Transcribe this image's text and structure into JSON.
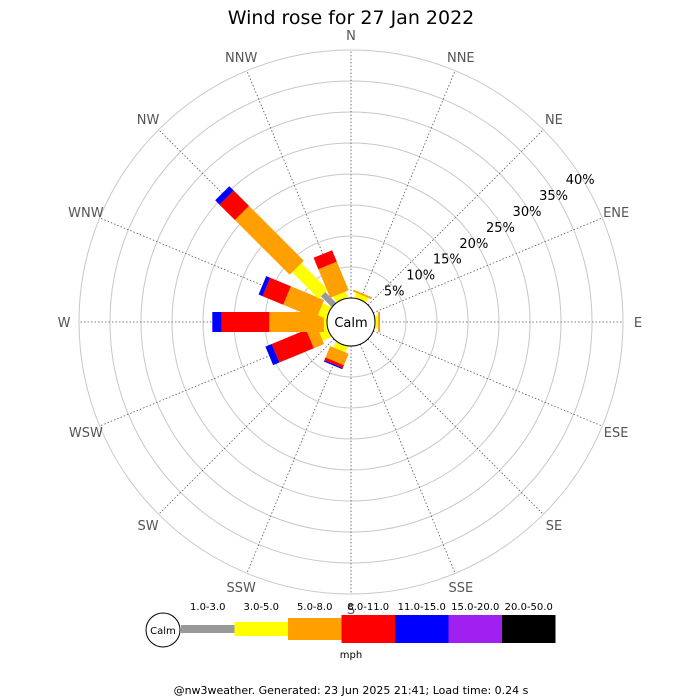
{
  "chart_data": {
    "type": "wind-rose",
    "title": "Wind rose for 27 Jan 2022",
    "directions": [
      "N",
      "NNE",
      "NE",
      "ENE",
      "E",
      "ESE",
      "SE",
      "SSE",
      "S",
      "SSW",
      "SW",
      "WSW",
      "W",
      "WNW",
      "NW",
      "NNW"
    ],
    "radial_ticks": [
      "5%",
      "10%",
      "15%",
      "20%",
      "25%",
      "30%",
      "35%",
      "40%"
    ],
    "radial_max_pct": 40,
    "calm_label": "Calm",
    "speed_bins": [
      "1.0-3.0",
      "3.0-5.0",
      "5.0-8.0",
      "8.0-11.0",
      "11.0-15.0",
      "15.0-20.0",
      "20.0-50.0"
    ],
    "speed_unit": "mph",
    "bin_colors": [
      "#999999",
      "#ffff00",
      "#ff9f00",
      "#ff0000",
      "#0000ff",
      "#a020f0",
      "#000000"
    ],
    "series": [
      {
        "direction": "N",
        "values": [
          0,
          0,
          0,
          0,
          0,
          0,
          0
        ]
      },
      {
        "direction": "NNE",
        "values": [
          0,
          0.8,
          0.3,
          0,
          0,
          0,
          0
        ]
      },
      {
        "direction": "NE",
        "values": [
          0,
          0,
          0,
          0,
          0,
          0,
          0
        ]
      },
      {
        "direction": "ENE",
        "values": [
          0,
          0,
          0,
          0,
          0,
          0,
          0
        ]
      },
      {
        "direction": "E",
        "values": [
          0,
          0.5,
          0.3,
          0,
          0,
          0,
          0
        ]
      },
      {
        "direction": "ESE",
        "values": [
          0,
          0,
          0,
          0,
          0,
          0,
          0
        ]
      },
      {
        "direction": "SE",
        "values": [
          0,
          0,
          0,
          0,
          0,
          0,
          0
        ]
      },
      {
        "direction": "SSE",
        "values": [
          0,
          0,
          0,
          0,
          0,
          0,
          0
        ]
      },
      {
        "direction": "S",
        "values": [
          0,
          0,
          0,
          0,
          0,
          0,
          0
        ]
      },
      {
        "direction": "SSW",
        "values": [
          0,
          1.0,
          2.0,
          0.5,
          0.2,
          0,
          0
        ]
      },
      {
        "direction": "SW",
        "values": [
          0,
          0,
          0,
          0,
          0,
          0,
          0
        ]
      },
      {
        "direction": "WSW",
        "values": [
          0,
          1.5,
          1.8,
          6.0,
          1.1,
          0,
          0
        ]
      },
      {
        "direction": "W",
        "values": [
          0,
          0.5,
          8.8,
          7.7,
          1.5,
          0,
          0
        ]
      },
      {
        "direction": "WNW",
        "values": [
          0,
          1.5,
          5.8,
          3.6,
          0.7,
          0,
          0
        ]
      },
      {
        "direction": "NW",
        "values": [
          2.5,
          6.0,
          12.5,
          3.5,
          1.0,
          0,
          0
        ]
      },
      {
        "direction": "NNW",
        "values": [
          0,
          1.0,
          5.0,
          2.0,
          0,
          0,
          0
        ]
      }
    ]
  },
  "footer": "@nw3weather. Generated: 23 Jun 2025 21:41; Load time: 0.24 s"
}
